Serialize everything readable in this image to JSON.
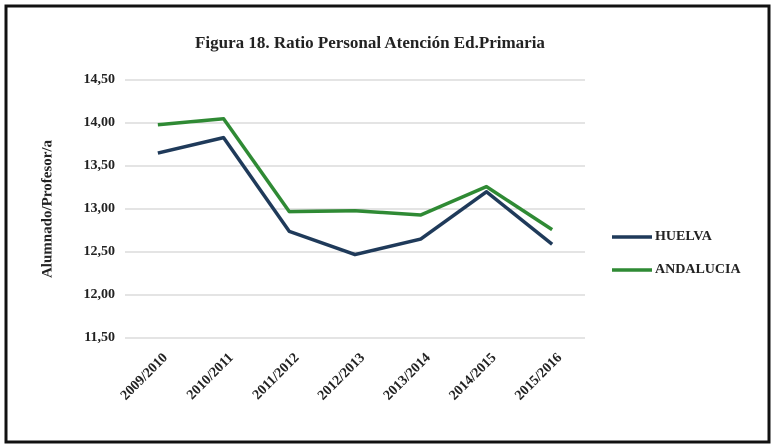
{
  "chart_data": {
    "type": "line",
    "title": "Figura 18. Ratio Personal Atención Ed.Primaria",
    "y_label": "Alumnado/Profesor/a",
    "categories": [
      "2009/2010",
      "2010/2011",
      "2011/2012",
      "2012/2013",
      "2013/2014",
      "2014/2015",
      "2015/2016"
    ],
    "series": [
      {
        "name": "HUELVA",
        "color": "#1f3a5a",
        "values": [
          13.65,
          13.83,
          12.74,
          12.47,
          12.65,
          13.2,
          12.59
        ]
      },
      {
        "name": "ANDALUCIA",
        "color": "#2f8a34",
        "values": [
          13.98,
          14.05,
          12.97,
          12.98,
          12.93,
          13.26,
          12.76
        ]
      }
    ],
    "ylim": [
      11.5,
      14.5
    ],
    "yticks": [
      {
        "value": 11.5,
        "label": "11,50"
      },
      {
        "value": 12,
        "label": "12,00"
      },
      {
        "value": 12.5,
        "label": "12,50"
      },
      {
        "value": 13,
        "label": "13,00"
      },
      {
        "value": 13.5,
        "label": "13,50"
      },
      {
        "value": 14,
        "label": "14,00"
      },
      {
        "value": 14.5,
        "label": "14,50"
      }
    ],
    "grid": true,
    "legend": "right"
  }
}
